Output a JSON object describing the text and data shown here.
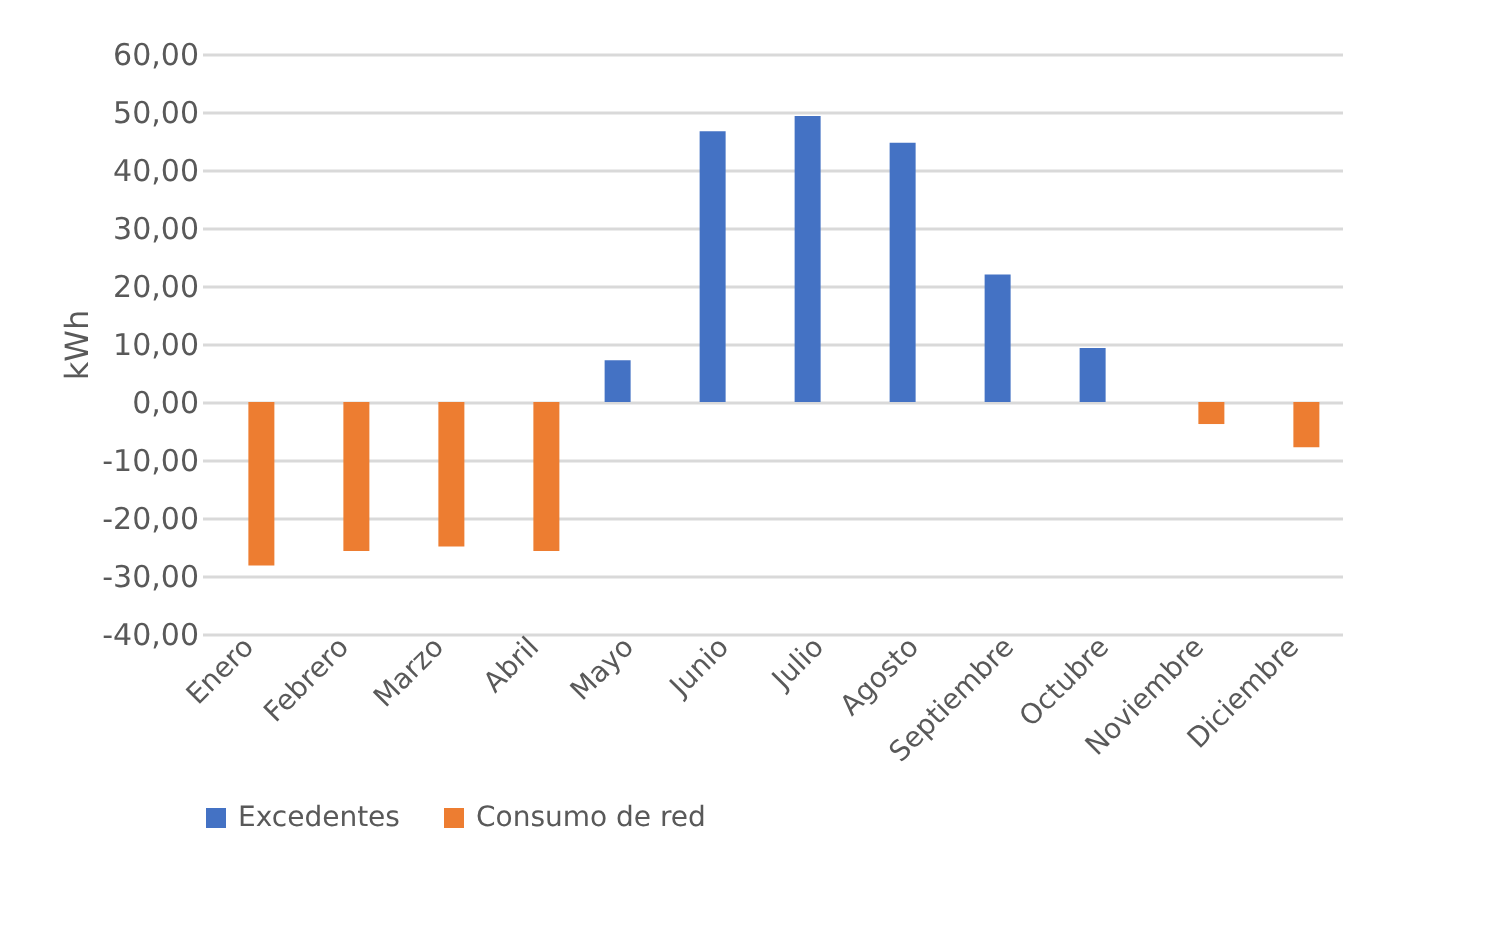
{
  "chart_data": {
    "type": "bar",
    "ylabel": "kWh",
    "categories": [
      "Enero",
      "Febrero",
      "Marzo",
      "Abril",
      "Mayo",
      "Junio",
      "Julio",
      "Agosto",
      "Septiembre",
      "Octubre",
      "Noviembre",
      "Diciembre"
    ],
    "series": [
      {
        "name": "Excedentes",
        "color": "#4472c4",
        "values": [
          null,
          null,
          null,
          null,
          7.2,
          46.7,
          49.3,
          44.7,
          22.0,
          9.3,
          null,
          null
        ]
      },
      {
        "name": "Consumo de red",
        "color": "#ed7d31",
        "values": [
          -28.2,
          -25.7,
          -24.9,
          -25.7,
          null,
          null,
          null,
          null,
          null,
          null,
          -3.8,
          -7.8
        ]
      }
    ],
    "ylim": [
      -40,
      60
    ],
    "yticks": [
      {
        "value": -40,
        "label": "-40,00"
      },
      {
        "value": -30,
        "label": "-30,00"
      },
      {
        "value": -20,
        "label": "-20,00"
      },
      {
        "value": -10,
        "label": "-10,00"
      },
      {
        "value": 0,
        "label": "0,00"
      },
      {
        "value": 10,
        "label": "10,00"
      },
      {
        "value": 20,
        "label": "20,00"
      },
      {
        "value": 30,
        "label": "30,00"
      },
      {
        "value": 40,
        "label": "40,00"
      },
      {
        "value": 50,
        "label": "50,00"
      },
      {
        "value": 60,
        "label": "60,00"
      }
    ],
    "grid": "y",
    "legend": "bottom"
  }
}
